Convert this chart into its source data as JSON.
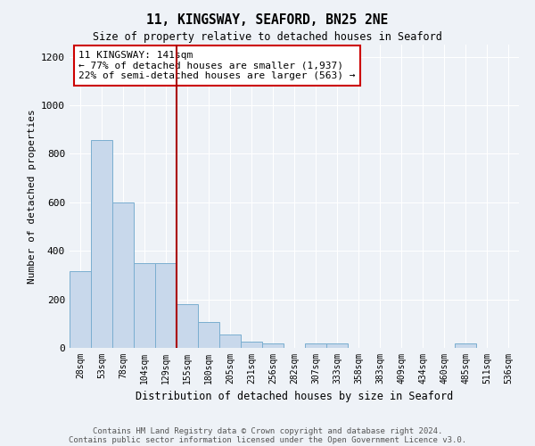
{
  "title": "11, KINGSWAY, SEAFORD, BN25 2NE",
  "subtitle": "Size of property relative to detached houses in Seaford",
  "xlabel": "Distribution of detached houses by size in Seaford",
  "ylabel": "Number of detached properties",
  "categories": [
    "28sqm",
    "53sqm",
    "78sqm",
    "104sqm",
    "129sqm",
    "155sqm",
    "180sqm",
    "205sqm",
    "231sqm",
    "256sqm",
    "282sqm",
    "307sqm",
    "333sqm",
    "358sqm",
    "383sqm",
    "409sqm",
    "434sqm",
    "460sqm",
    "485sqm",
    "511sqm",
    "536sqm"
  ],
  "values": [
    315,
    855,
    600,
    350,
    350,
    180,
    105,
    55,
    25,
    20,
    0,
    20,
    20,
    0,
    0,
    0,
    0,
    0,
    20,
    0,
    0
  ],
  "bar_color": "#c8d8eb",
  "bar_edge_color": "#7aaed0",
  "bar_width": 1.0,
  "vline_x": 4.5,
  "vline_color": "#aa0000",
  "annotation_text": "11 KINGSWAY: 141sqm\n← 77% of detached houses are smaller (1,937)\n22% of semi-detached houses are larger (563) →",
  "annotation_box_color": "#ffffff",
  "annotation_box_edge": "#cc0000",
  "ylim": [
    0,
    1250
  ],
  "yticks": [
    0,
    200,
    400,
    600,
    800,
    1000,
    1200
  ],
  "background_color": "#eef2f7",
  "grid_color": "#ffffff",
  "footer_line1": "Contains HM Land Registry data © Crown copyright and database right 2024.",
  "footer_line2": "Contains public sector information licensed under the Open Government Licence v3.0."
}
